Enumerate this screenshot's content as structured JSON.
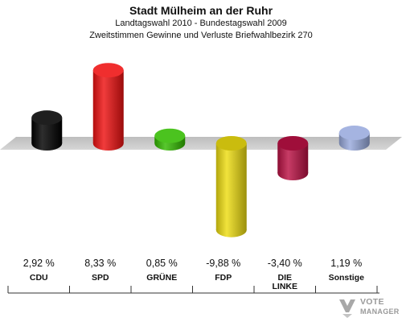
{
  "header": {
    "title": "Stadt Mülheim an der Ruhr",
    "subtitle": "Landtagswahl 2010 - Bundestagswahl 2009",
    "description": "Zweitstimmen Gewinne und Verluste Briefwahlbezirk 270"
  },
  "chart_data": {
    "type": "bar",
    "categories": [
      "CDU",
      "SPD",
      "GRÜNE",
      "FDP",
      "DIE LINKE",
      "Sonstige"
    ],
    "values": [
      2.92,
      8.33,
      0.85,
      -9.88,
      -3.4,
      1.19
    ],
    "value_labels": [
      "2,92 %",
      "8,33 %",
      "0,85 %",
      "-9,88 %",
      "-3,40 %",
      "1,19 %"
    ],
    "category_labels": [
      "CDU",
      "SPD",
      "GRÜNE",
      "FDP",
      "DIE\nLINKE",
      "Sonstige"
    ],
    "colors": [
      "#000000",
      "#ee1111",
      "#33bb00",
      "#eedd11",
      "#bb1144",
      "#99aadd"
    ],
    "unit": "%",
    "grid": false,
    "legend": "none"
  },
  "branding": {
    "line1": "VOTE",
    "line2": "MANAGER",
    "color": "#9a9a9a"
  }
}
